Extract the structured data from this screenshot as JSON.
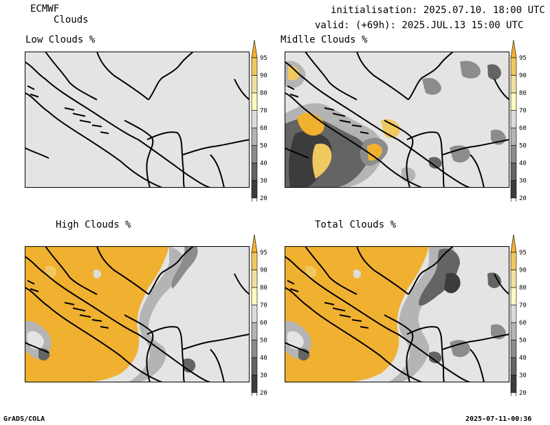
{
  "header": {
    "model": "ECMWF",
    "variable": "Clouds",
    "init_label": "initialisation: 2025.07.10. 18:00 UTC",
    "valid_label": "valid: (+69h): 2025.JUL.13 15:00 UTC"
  },
  "panels": [
    {
      "key": "low",
      "title": "Low Clouds %"
    },
    {
      "key": "mid",
      "title": "Midlle Clouds %"
    },
    {
      "key": "high",
      "title": "High Clouds %"
    },
    {
      "key": "total",
      "title": "Total Clouds %"
    }
  ],
  "colorbar": {
    "levels": [
      "20",
      "30",
      "40",
      "50",
      "60",
      "70",
      "80",
      "90",
      "95"
    ],
    "colors": [
      "#ffffff",
      "#3c3c3c",
      "#646464",
      "#8c8c8c",
      "#b4b4b4",
      "#dcdcdc",
      "#fcfcc0",
      "#f2e0a0",
      "#f0c860",
      "#f0b030"
    ]
  },
  "footer": {
    "left": "GrADS/COLA",
    "right": "2025-07-11-00:36"
  }
}
